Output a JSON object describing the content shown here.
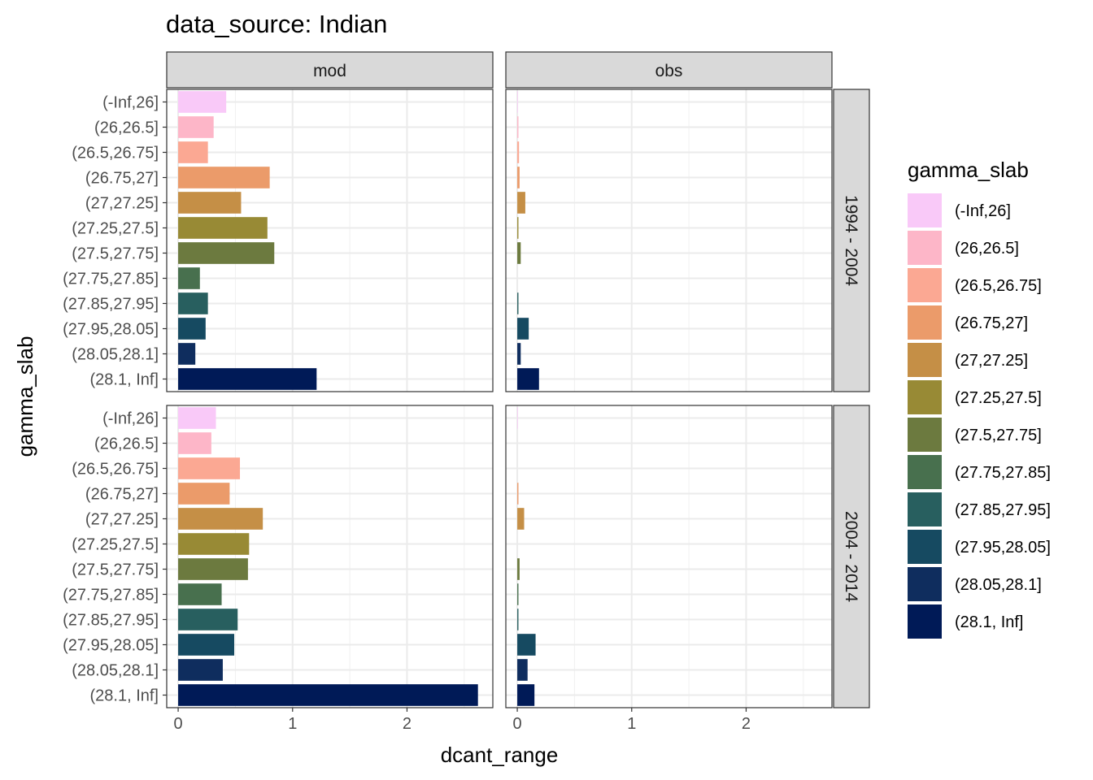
{
  "chart_data": {
    "type": "bar",
    "orientation": "horizontal",
    "title": "data_source: Indian",
    "xlabel": "dcant_range",
    "ylabel": "gamma_slab",
    "xlim": [
      -0.1,
      2.75
    ],
    "x_ticks": [
      "0",
      "1",
      "2"
    ],
    "x_tick_values": [
      0,
      1,
      2
    ],
    "grid": true,
    "legend": {
      "title": "gamma_slab",
      "position": "right"
    },
    "columns": [
      "mod",
      "obs"
    ],
    "rows": [
      "1994 - 2004",
      "2004 - 2014"
    ],
    "categories": [
      "(-Inf,26]",
      "(26,26.5]",
      "(26.5,26.75]",
      "(26.75,27]",
      "(27,27.25]",
      "(27.25,27.5]",
      "(27.5,27.75]",
      "(27.75,27.85]",
      "(27.85,27.95]",
      "(27.95,28.05]",
      "(28.05,28.1]",
      "(28.1, Inf]"
    ],
    "colors": [
      "#F9C9F8",
      "#FDB6C8",
      "#FBA893",
      "#EB9B6A",
      "#C58F46",
      "#988A35",
      "#6C7A3F",
      "#48704E",
      "#285F5F",
      "#164A61",
      "#0F2D5E",
      "#001A57"
    ],
    "panels": [
      {
        "column": "mod",
        "row": "1994 - 2004",
        "values": [
          0.42,
          0.31,
          0.26,
          0.8,
          0.55,
          0.78,
          0.84,
          0.19,
          0.26,
          0.24,
          0.15,
          1.21
        ]
      },
      {
        "column": "obs",
        "row": "1994 - 2004",
        "values": [
          0.005,
          0.01,
          0.015,
          0.02,
          0.07,
          0.01,
          0.03,
          0.0,
          0.01,
          0.1,
          0.03,
          0.19
        ]
      },
      {
        "column": "mod",
        "row": "2004 - 2014",
        "values": [
          0.33,
          0.29,
          0.54,
          0.45,
          0.74,
          0.62,
          0.61,
          0.38,
          0.52,
          0.49,
          0.39,
          2.62
        ]
      },
      {
        "column": "obs",
        "row": "2004 - 2014",
        "values": [
          0.005,
          0.0,
          0.0,
          0.01,
          0.06,
          0.0,
          0.02,
          0.01,
          0.01,
          0.16,
          0.09,
          0.15
        ]
      }
    ]
  }
}
